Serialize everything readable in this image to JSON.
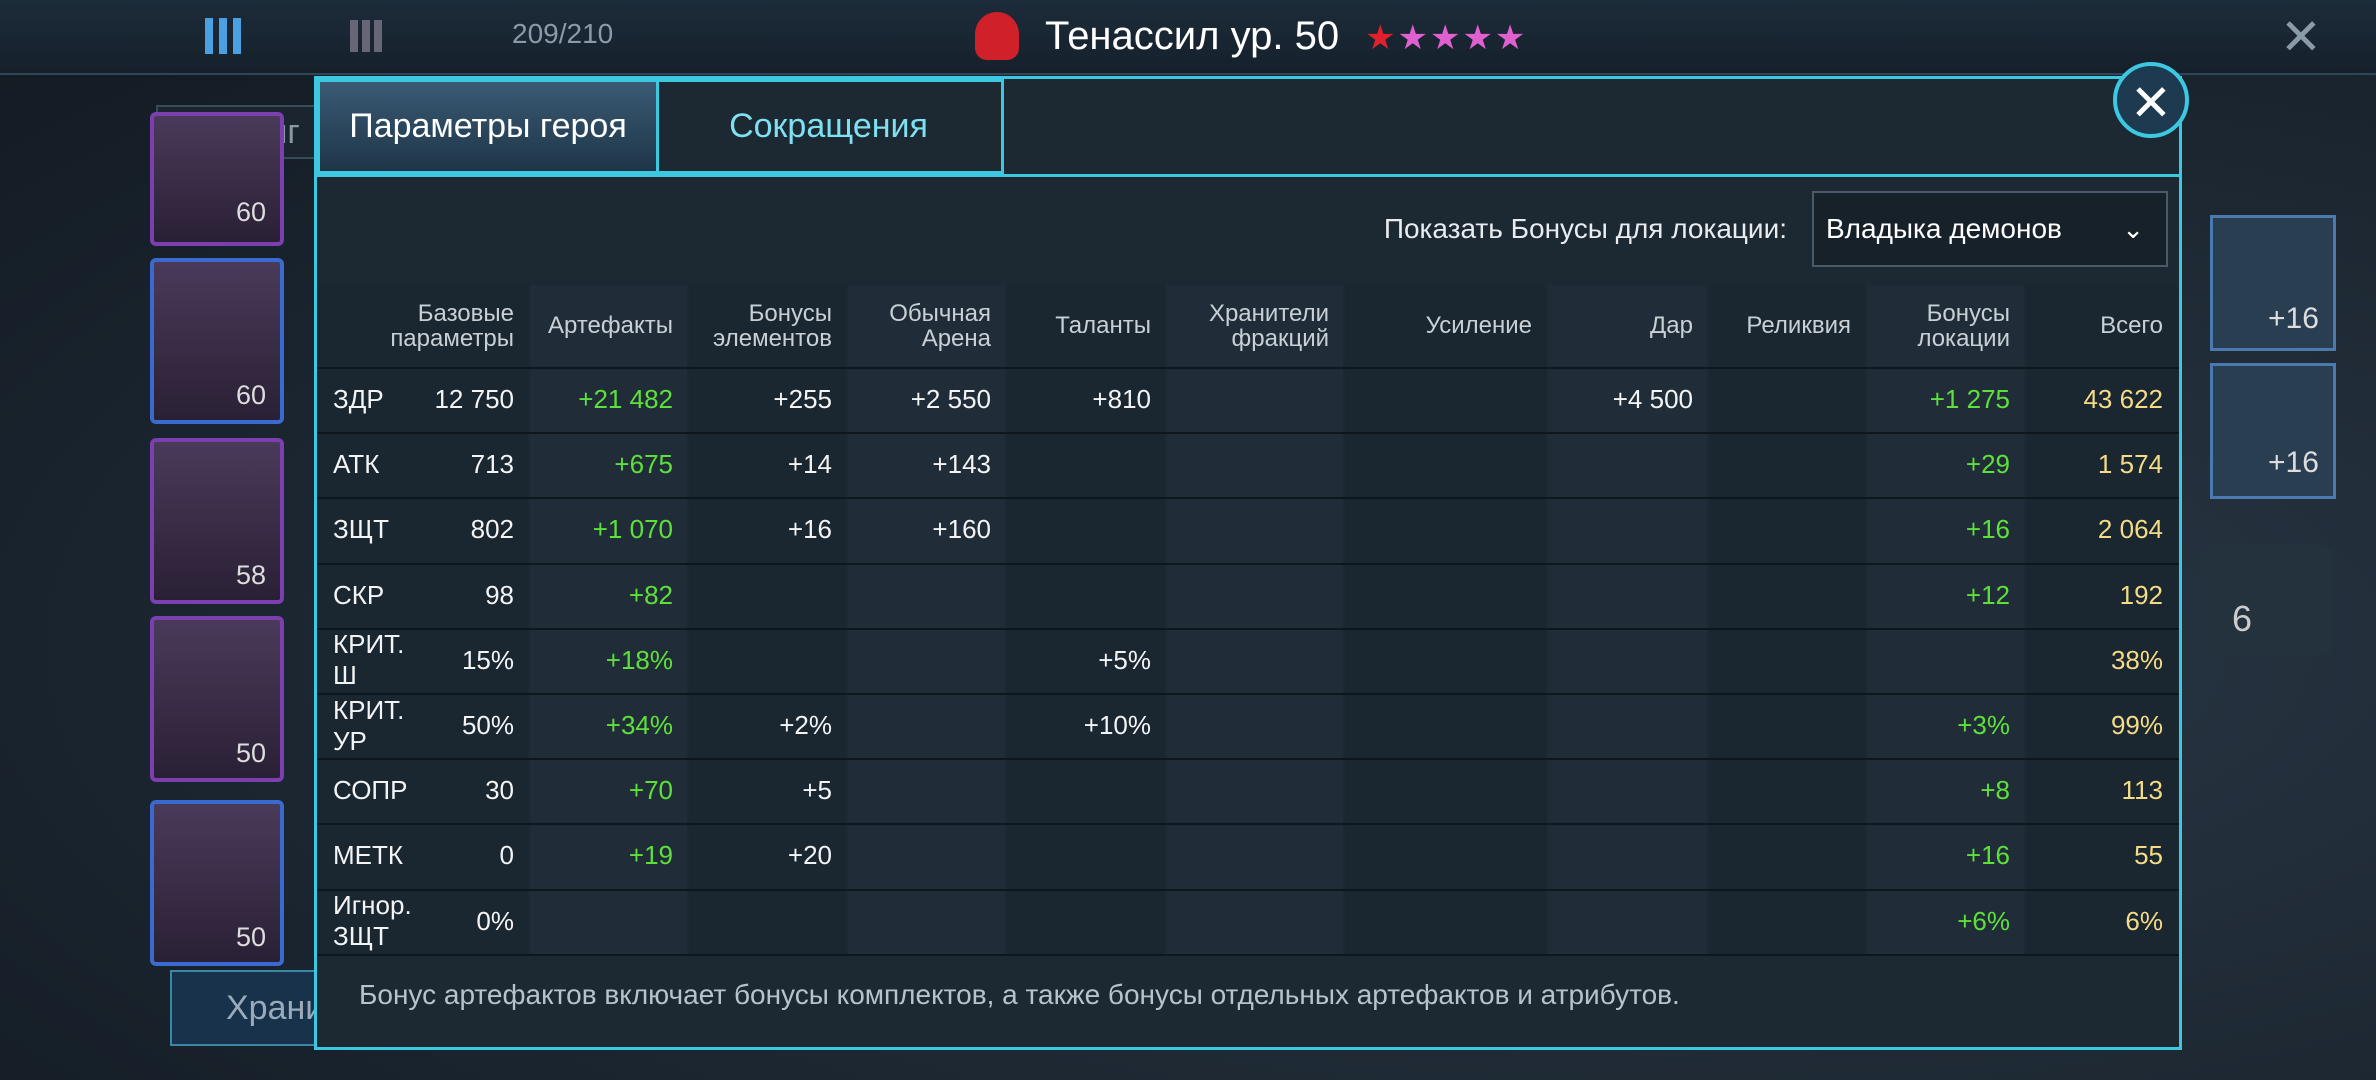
{
  "top_bar": {
    "roster_count": "209/210",
    "hero_title": "Тенассил ур. 50"
  },
  "background": {
    "search_placeholder": "По ранг",
    "storage_button": "Храни",
    "hero_levels": [
      "60",
      "60",
      "58",
      "50",
      "50"
    ],
    "artifact_levels": [
      "+16",
      "+16"
    ],
    "locked_count": "6"
  },
  "tabs": [
    "Параметры героя",
    "Сокращения"
  ],
  "location_filter": {
    "label": "Показать Бонусы для локации:",
    "selected": "Владыка демонов"
  },
  "table": {
    "headers": [
      "Базовые параметры",
      "Артефакты",
      "Бонусы элементов",
      "Обычная Арена",
      "Таланты",
      "Хранители фракций",
      "Усиление",
      "Дар",
      "Реликвия",
      "Бонусы локации",
      "Всего"
    ],
    "rows": [
      [
        "ЗДР",
        "12 750",
        "+21 482",
        "+255",
        "+2 550",
        "+810",
        null,
        null,
        "+4 500",
        null,
        "+1 275",
        "43 622"
      ],
      [
        "АТК",
        "713",
        "+675",
        "+14",
        "+143",
        null,
        null,
        null,
        null,
        null,
        "+29",
        "1 574"
      ],
      [
        "ЗЩТ",
        "802",
        "+1 070",
        "+16",
        "+160",
        null,
        null,
        null,
        null,
        null,
        "+16",
        "2 064"
      ],
      [
        "СКР",
        "98",
        "+82",
        null,
        null,
        null,
        null,
        null,
        null,
        null,
        "+12",
        "192"
      ],
      [
        "КРИТ. Ш",
        "15%",
        "+18%",
        null,
        null,
        "+5%",
        null,
        null,
        null,
        null,
        null,
        "38%"
      ],
      [
        "КРИТ. УР",
        "50%",
        "+34%",
        "+2%",
        null,
        "+10%",
        null,
        null,
        null,
        null,
        "+3%",
        "99%"
      ],
      [
        "СОПР",
        "30",
        "+70",
        "+5",
        null,
        null,
        null,
        null,
        null,
        null,
        "+8",
        "113"
      ],
      [
        "МЕТК",
        "0",
        "+19",
        "+20",
        null,
        null,
        null,
        null,
        null,
        null,
        "+16",
        "55"
      ],
      [
        "Игнор. ЗЩТ",
        "0%",
        null,
        null,
        null,
        null,
        null,
        null,
        null,
        null,
        "+6%",
        "6%"
      ]
    ]
  },
  "footnote": "Бонус артефактов включает бонусы комплектов, а также бонусы отдельных артефактов и атрибутов."
}
